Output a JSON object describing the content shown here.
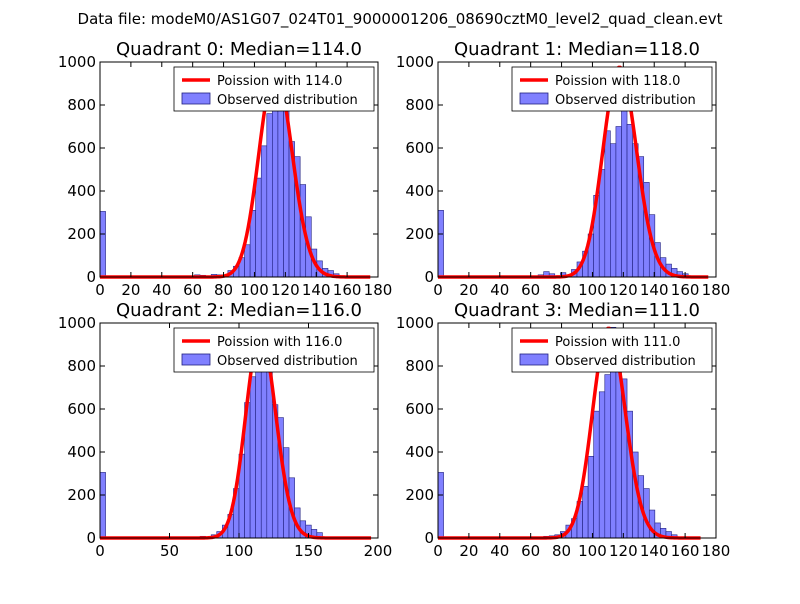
{
  "figure_title": "Data file: modeM0/AS1G07_024T01_9000001206_08690cztM0_level2_quad_clean.evt",
  "colors": {
    "bar_fill": "#8080ff",
    "bar_edge": "#202080",
    "curve": "#ff0000",
    "frame": "#000000",
    "legend_edge": "#000000"
  },
  "chart_data": [
    {
      "type": "bar",
      "title": "Quadrant 0: Median=114.0",
      "xlim": [
        0,
        180
      ],
      "ylim": [
        0,
        1000
      ],
      "xticks": [
        0,
        20,
        40,
        60,
        80,
        100,
        120,
        140,
        160,
        180
      ],
      "yticks": [
        0,
        200,
        400,
        600,
        800,
        1000
      ],
      "bin_width": 3.6,
      "legend": {
        "position": "top-right",
        "curve_label": "Poission with 114.0",
        "bar_label": "Observed distribution"
      },
      "bars": [
        [
          0,
          305
        ],
        [
          3.6,
          3
        ],
        [
          7.2,
          2
        ],
        [
          14.4,
          2
        ],
        [
          21.6,
          3
        ],
        [
          28.8,
          2
        ],
        [
          36,
          3
        ],
        [
          43.2,
          3
        ],
        [
          54,
          4
        ],
        [
          61.2,
          10
        ],
        [
          64.8,
          8
        ],
        [
          72,
          12
        ],
        [
          75.6,
          10
        ],
        [
          82.8,
          30
        ],
        [
          86.4,
          50
        ],
        [
          90,
          90
        ],
        [
          93.6,
          150
        ],
        [
          97.2,
          310
        ],
        [
          100.8,
          460
        ],
        [
          104.4,
          610
        ],
        [
          108,
          760
        ],
        [
          111.6,
          815
        ],
        [
          115.2,
          920
        ],
        [
          118.8,
          960
        ],
        [
          122.4,
          630
        ],
        [
          126,
          560
        ],
        [
          129.6,
          430
        ],
        [
          133.2,
          280
        ],
        [
          136.8,
          130
        ],
        [
          140.4,
          75
        ],
        [
          144,
          40
        ],
        [
          147.6,
          30
        ],
        [
          151.2,
          15
        ]
      ],
      "poisson": {
        "mean": 114.0,
        "label": "Poission with 114.0",
        "x_range": [
          0,
          175
        ],
        "peak": 960
      }
    },
    {
      "type": "bar",
      "title": "Quadrant 1: Median=118.0",
      "xlim": [
        0,
        180
      ],
      "ylim": [
        0,
        1000
      ],
      "xticks": [
        0,
        20,
        40,
        60,
        80,
        100,
        120,
        140,
        160,
        180
      ],
      "yticks": [
        0,
        200,
        400,
        600,
        800,
        1000
      ],
      "bin_width": 3.6,
      "legend": {
        "position": "top-right",
        "curve_label": "Poission with 118.0",
        "bar_label": "Observed distribution"
      },
      "bars": [
        [
          0,
          310
        ],
        [
          3.6,
          3
        ],
        [
          10.8,
          2
        ],
        [
          18,
          3
        ],
        [
          28.8,
          2
        ],
        [
          36,
          3
        ],
        [
          46.8,
          3
        ],
        [
          57.6,
          5
        ],
        [
          64.8,
          10
        ],
        [
          68.4,
          25
        ],
        [
          72,
          15
        ],
        [
          79.2,
          20
        ],
        [
          86.4,
          35
        ],
        [
          90,
          70
        ],
        [
          93.6,
          120
        ],
        [
          97.2,
          200
        ],
        [
          100.8,
          380
        ],
        [
          104.4,
          500
        ],
        [
          108,
          680
        ],
        [
          111.6,
          620
        ],
        [
          115.2,
          700
        ],
        [
          118.8,
          840
        ],
        [
          122.4,
          710
        ],
        [
          126,
          620
        ],
        [
          129.6,
          560
        ],
        [
          133.2,
          440
        ],
        [
          136.8,
          290
        ],
        [
          140.4,
          160
        ],
        [
          144,
          90
        ],
        [
          147.6,
          60
        ],
        [
          151.2,
          40
        ],
        [
          154.8,
          25
        ],
        [
          158.4,
          15
        ]
      ],
      "poisson": {
        "mean": 118.0,
        "label": "Poission with 118.0",
        "x_range": [
          0,
          175
        ],
        "peak": 975
      }
    },
    {
      "type": "bar",
      "title": "Quadrant 2: Median=116.0",
      "xlim": [
        0,
        200
      ],
      "ylim": [
        0,
        1000
      ],
      "xticks": [
        0,
        50,
        100,
        150,
        200
      ],
      "yticks": [
        0,
        200,
        400,
        600,
        800,
        1000
      ],
      "bin_width": 4,
      "legend": {
        "position": "top-right",
        "curve_label": "Poission with 116.0",
        "bar_label": "Observed distribution"
      },
      "bars": [
        [
          0,
          305
        ],
        [
          4,
          3
        ],
        [
          16,
          2
        ],
        [
          32,
          3
        ],
        [
          48,
          2
        ],
        [
          64,
          4
        ],
        [
          72,
          8
        ],
        [
          80,
          15
        ],
        [
          84,
          30
        ],
        [
          88,
          60
        ],
        [
          92,
          110
        ],
        [
          96,
          230
        ],
        [
          100,
          390
        ],
        [
          104,
          630
        ],
        [
          108,
          750
        ],
        [
          112,
          930
        ],
        [
          116,
          830
        ],
        [
          120,
          870
        ],
        [
          124,
          620
        ],
        [
          128,
          560
        ],
        [
          132,
          420
        ],
        [
          136,
          280
        ],
        [
          140,
          140
        ],
        [
          144,
          80
        ],
        [
          148,
          60
        ],
        [
          152,
          40
        ],
        [
          156,
          25
        ]
      ],
      "poisson": {
        "mean": 116.0,
        "label": "Poission with 116.0",
        "x_range": [
          0,
          195
        ],
        "peak": 950
      }
    },
    {
      "type": "bar",
      "title": "Quadrant 3: Median=111.0",
      "xlim": [
        0,
        180
      ],
      "ylim": [
        0,
        1000
      ],
      "xticks": [
        0,
        20,
        40,
        60,
        80,
        100,
        120,
        140,
        160,
        180
      ],
      "yticks": [
        0,
        200,
        400,
        600,
        800,
        1000
      ],
      "bin_width": 3.6,
      "legend": {
        "position": "top-right",
        "curve_label": "Poission with 111.0",
        "bar_label": "Observed distribution"
      },
      "bars": [
        [
          0,
          305
        ],
        [
          3.6,
          2
        ],
        [
          14.4,
          2
        ],
        [
          25.2,
          3
        ],
        [
          36,
          2
        ],
        [
          46.8,
          3
        ],
        [
          61.2,
          5
        ],
        [
          68.4,
          8
        ],
        [
          72,
          10
        ],
        [
          75.6,
          15
        ],
        [
          79.2,
          30
        ],
        [
          82.8,
          60
        ],
        [
          86.4,
          90
        ],
        [
          90,
          170
        ],
        [
          93.6,
          240
        ],
        [
          97.2,
          380
        ],
        [
          100.8,
          590
        ],
        [
          104.4,
          680
        ],
        [
          108,
          760
        ],
        [
          111.6,
          980
        ],
        [
          115.2,
          930
        ],
        [
          118.8,
          740
        ],
        [
          122.4,
          590
        ],
        [
          126,
          400
        ],
        [
          129.6,
          290
        ],
        [
          133.2,
          230
        ],
        [
          136.8,
          130
        ],
        [
          140.4,
          70
        ],
        [
          144,
          45
        ],
        [
          147.6,
          30
        ],
        [
          151.2,
          15
        ]
      ],
      "poisson": {
        "mean": 111.0,
        "label": "Poission with 111.0",
        "x_range": [
          0,
          170
        ],
        "peak": 975
      }
    }
  ]
}
